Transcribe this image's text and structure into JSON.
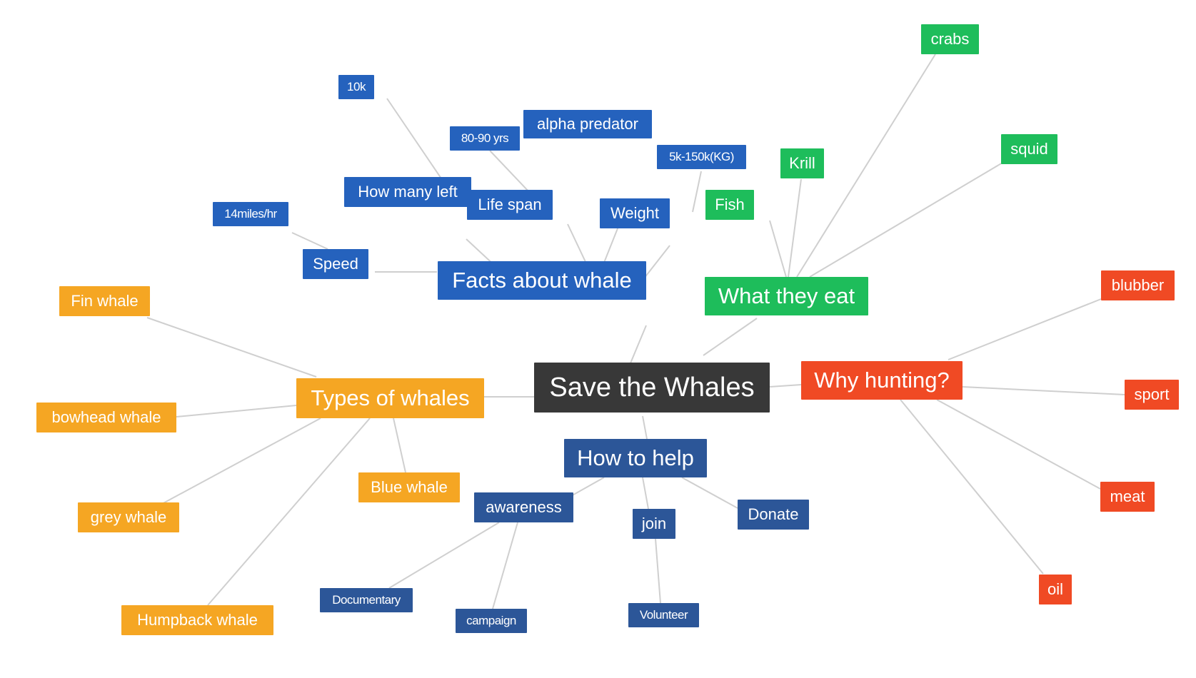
{
  "colors": {
    "root": "#383838",
    "facts": "#2562bd",
    "eat": "#1ebd5b",
    "hunting": "#f04a24",
    "help": "#2c5698",
    "types": "#f5a623",
    "edge": "#cfcfcf"
  },
  "root": {
    "label": "Save the Whales"
  },
  "branches": {
    "facts": {
      "label": "Facts about whale",
      "children": [
        "How many left",
        "Life span",
        "alpha predator",
        "Weight",
        "Speed"
      ],
      "grandchildren": {
        "How many left": "10k",
        "Life span": "80-90 yrs",
        "Weight": "5k-150k(KG)",
        "Speed": "14miles/hr"
      }
    },
    "eat": {
      "label": "What they eat",
      "children": [
        "Fish",
        "Krill",
        "crabs",
        "squid"
      ]
    },
    "hunting": {
      "label": "Why hunting?",
      "children": [
        "blubber",
        "sport",
        "meat",
        "oil"
      ]
    },
    "help": {
      "label": "How to help",
      "children": [
        "awareness",
        "join",
        "Donate"
      ],
      "grandchildren": {
        "awareness": [
          "Documentary",
          "campaign"
        ],
        "join": [
          "Volunteer"
        ]
      }
    },
    "types": {
      "label": "Types of whales",
      "children": [
        "Fin whale",
        "bowhead whale",
        "grey whale",
        "Humpback whale",
        "Blue whale"
      ]
    }
  }
}
